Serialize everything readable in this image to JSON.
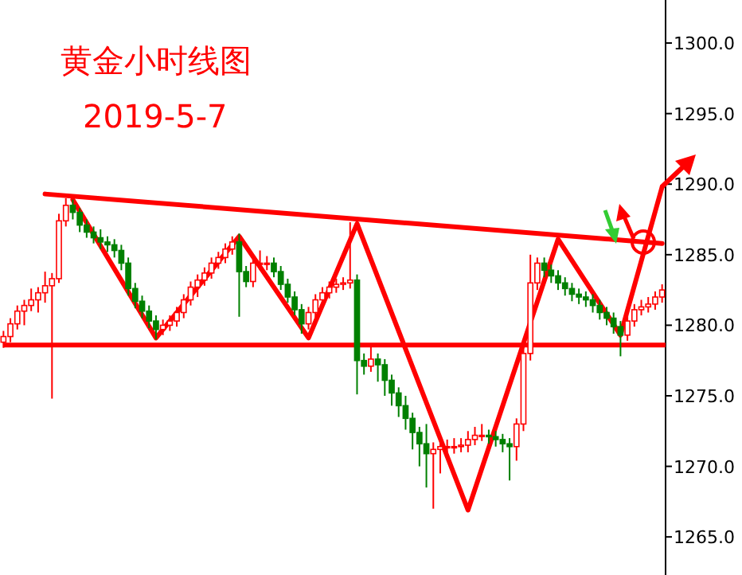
{
  "chart_data": {
    "type": "candlestick",
    "title": "黄金小时线图",
    "subtitle": "2019-5-7",
    "categories": [
      null,
      null,
      null,
      null,
      null,
      null,
      null,
      null,
      null,
      null,
      null,
      null,
      null,
      null,
      null,
      null,
      null,
      null,
      null,
      null,
      null,
      null,
      null,
      null,
      null,
      null,
      null,
      null,
      null,
      null,
      null,
      null,
      null,
      null,
      null,
      null,
      null,
      null,
      null,
      null,
      null,
      null,
      null,
      null,
      null,
      null,
      null,
      null,
      null,
      null,
      null,
      null,
      null,
      null,
      null,
      null,
      null,
      null,
      null,
      null,
      null,
      null,
      null,
      null,
      null,
      null,
      null,
      null,
      null,
      null,
      null,
      null,
      null,
      null,
      null,
      null,
      null,
      null,
      null,
      null,
      null,
      null,
      null,
      null,
      null,
      null,
      null,
      null,
      null,
      null,
      null,
      null,
      null,
      null,
      null,
      null
    ],
    "ylim": [
      1262.3,
      1303.05
    ],
    "yticks": [
      {
        "value": 1265,
        "label": "1265.0"
      },
      {
        "value": 1270,
        "label": "1270.0"
      },
      {
        "value": 1275,
        "label": "1275.0"
      },
      {
        "value": 1280,
        "label": "1280.0"
      },
      {
        "value": 1285,
        "label": "1285.0"
      },
      {
        "value": 1290,
        "label": "1290.0"
      },
      {
        "value": 1295,
        "label": "1295.0"
      },
      {
        "value": 1300,
        "label": "1300.0"
      }
    ],
    "series": [
      {
        "ohlc": [
          [
            1278.8,
            1279.6,
            1278.4,
            1279.2
          ],
          [
            1279.2,
            1280.5,
            1278.8,
            1280.1
          ],
          [
            1280.1,
            1281.4,
            1279.7,
            1281.0
          ],
          [
            1281.0,
            1281.8,
            1280.0,
            1281.4
          ],
          [
            1281.4,
            1282.6,
            1281.0,
            1281.8
          ],
          [
            1281.8,
            1282.7,
            1280.9,
            1282.3
          ],
          [
            1282.3,
            1283.8,
            1281.6,
            1282.8
          ],
          [
            1282.8,
            1283.7,
            1274.8,
            1283.3
          ],
          [
            1283.3,
            1287.9,
            1283.0,
            1287.4
          ],
          [
            1287.4,
            1289.0,
            1287.0,
            1288.5
          ],
          [
            1288.5,
            1288.9,
            1287.5,
            1288.0
          ],
          [
            1288.0,
            1288.3,
            1286.6,
            1287.1
          ],
          [
            1287.1,
            1287.5,
            1286.2,
            1286.6
          ],
          [
            1286.6,
            1287.0,
            1285.8,
            1286.2
          ],
          [
            1286.2,
            1286.8,
            1285.4,
            1285.9
          ],
          [
            1285.9,
            1286.3,
            1285.2,
            1285.7
          ],
          [
            1285.7,
            1286.1,
            1284.8,
            1285.3
          ],
          [
            1285.3,
            1285.7,
            1283.9,
            1284.4
          ],
          [
            1284.4,
            1284.8,
            1282.1,
            1282.6
          ],
          [
            1282.6,
            1283.0,
            1281.2,
            1281.7
          ],
          [
            1281.7,
            1282.1,
            1280.5,
            1281.0
          ],
          [
            1281.0,
            1281.4,
            1279.8,
            1280.3
          ],
          [
            1280.3,
            1280.7,
            1279.0,
            1279.7
          ],
          [
            1279.7,
            1280.4,
            1279.3,
            1280.0
          ],
          [
            1280.0,
            1280.7,
            1279.6,
            1280.3
          ],
          [
            1280.3,
            1281.3,
            1279.9,
            1280.9
          ],
          [
            1280.9,
            1282.2,
            1280.5,
            1281.8
          ],
          [
            1281.8,
            1283.1,
            1281.4,
            1282.7
          ],
          [
            1282.7,
            1283.6,
            1282.0,
            1283.2
          ],
          [
            1283.2,
            1284.1,
            1282.8,
            1283.7
          ],
          [
            1283.7,
            1284.8,
            1283.3,
            1284.4
          ],
          [
            1284.4,
            1285.2,
            1284.0,
            1284.8
          ],
          [
            1284.8,
            1285.8,
            1284.4,
            1285.4
          ],
          [
            1285.4,
            1286.3,
            1285.0,
            1285.9
          ],
          [
            1285.9,
            1286.5,
            1280.6,
            1283.8
          ],
          [
            1283.8,
            1284.2,
            1282.7,
            1283.1
          ],
          [
            1283.1,
            1284.8,
            1282.7,
            1284.4
          ],
          [
            1284.4,
            1285.3,
            1283.9,
            1284.4
          ],
          [
            1284.4,
            1284.9,
            1283.9,
            1284.4
          ],
          [
            1284.4,
            1284.8,
            1283.4,
            1283.8
          ],
          [
            1283.8,
            1284.2,
            1282.5,
            1282.9
          ],
          [
            1282.9,
            1283.3,
            1281.6,
            1282.0
          ],
          [
            1282.0,
            1282.4,
            1280.7,
            1281.1
          ],
          [
            1281.1,
            1281.5,
            1279.4,
            1280.1
          ],
          [
            1280.1,
            1281.3,
            1279.7,
            1280.9
          ],
          [
            1280.9,
            1282.2,
            1280.5,
            1281.8
          ],
          [
            1281.8,
            1282.7,
            1281.4,
            1282.3
          ],
          [
            1282.3,
            1283.1,
            1281.9,
            1282.7
          ],
          [
            1282.7,
            1283.3,
            1282.3,
            1282.9
          ],
          [
            1282.9,
            1283.4,
            1282.5,
            1283.0
          ],
          [
            1283.0,
            1287.3,
            1282.6,
            1283.2
          ],
          [
            1283.2,
            1283.6,
            1275.1,
            1277.5
          ],
          [
            1277.5,
            1278.0,
            1276.5,
            1277.1
          ],
          [
            1277.1,
            1278.5,
            1276.7,
            1277.6
          ],
          [
            1277.6,
            1278.0,
            1276.0,
            1277.2
          ],
          [
            1277.2,
            1277.6,
            1275.0,
            1276.1
          ],
          [
            1276.1,
            1276.5,
            1274.3,
            1275.2
          ],
          [
            1275.2,
            1275.6,
            1273.5,
            1274.3
          ],
          [
            1274.3,
            1275.0,
            1272.6,
            1273.4
          ],
          [
            1273.4,
            1273.8,
            1271.2,
            1272.4
          ],
          [
            1272.4,
            1272.8,
            1270.0,
            1271.6
          ],
          [
            1271.6,
            1273.0,
            1268.5,
            1270.9
          ],
          [
            1270.9,
            1271.7,
            1267.0,
            1271.2
          ],
          [
            1271.2,
            1272.0,
            1269.5,
            1271.4
          ],
          [
            1271.4,
            1271.9,
            1270.5,
            1271.4
          ],
          [
            1271.4,
            1272.0,
            1270.9,
            1271.4
          ],
          [
            1271.4,
            1272.0,
            1271.0,
            1271.5
          ],
          [
            1271.5,
            1272.5,
            1271.0,
            1271.9
          ],
          [
            1271.9,
            1272.8,
            1271.5,
            1272.2
          ],
          [
            1272.2,
            1273.0,
            1271.8,
            1272.2
          ],
          [
            1272.2,
            1272.6,
            1271.6,
            1272.1
          ],
          [
            1272.1,
            1272.5,
            1271.4,
            1271.9
          ],
          [
            1271.9,
            1272.3,
            1271.0,
            1271.6
          ],
          [
            1271.6,
            1272.0,
            1269.0,
            1271.4
          ],
          [
            1271.4,
            1273.4,
            1270.4,
            1273.0
          ],
          [
            1273.0,
            1278.5,
            1272.5,
            1278.0
          ],
          [
            1278.0,
            1285.0,
            1277.5,
            1283.0
          ],
          [
            1283.0,
            1284.8,
            1282.5,
            1284.4
          ],
          [
            1284.4,
            1284.8,
            1283.4,
            1283.9
          ],
          [
            1283.9,
            1284.3,
            1283.0,
            1283.5
          ],
          [
            1283.5,
            1283.9,
            1282.5,
            1283.0
          ],
          [
            1283.0,
            1283.4,
            1282.1,
            1282.6
          ],
          [
            1282.6,
            1283.0,
            1281.7,
            1282.2
          ],
          [
            1282.2,
            1282.6,
            1281.5,
            1282.0
          ],
          [
            1282.0,
            1282.4,
            1281.3,
            1281.8
          ],
          [
            1281.8,
            1282.2,
            1280.9,
            1281.4
          ],
          [
            1281.4,
            1281.8,
            1280.4,
            1280.9
          ],
          [
            1280.9,
            1281.3,
            1280.0,
            1280.5
          ],
          [
            1280.5,
            1280.9,
            1279.4,
            1279.9
          ],
          [
            1279.9,
            1280.3,
            1277.8,
            1279.3
          ],
          [
            1279.3,
            1280.7,
            1278.9,
            1280.3
          ],
          [
            1280.3,
            1281.5,
            1279.9,
            1281.1
          ],
          [
            1281.1,
            1281.8,
            1280.7,
            1281.3
          ],
          [
            1281.3,
            1282.0,
            1280.9,
            1281.5
          ],
          [
            1281.5,
            1282.4,
            1281.1,
            1282.0
          ],
          [
            1282.0,
            1282.9,
            1281.6,
            1282.5
          ]
        ],
        "colors": [
          "#ff0000",
          "#ff0000",
          "#ff0000",
          "#ff0000",
          "#ff0000",
          "#ff0000",
          "#ff0000",
          "#ff0000",
          "#ff0000",
          "#ff0000",
          "#008000",
          "#008000",
          "#008000",
          "#008000",
          "#008000",
          "#008000",
          "#008000",
          "#008000",
          "#008000",
          "#008000",
          "#008000",
          "#008000",
          "#008000",
          "#ff0000",
          "#ff0000",
          "#ff0000",
          "#ff0000",
          "#ff0000",
          "#ff0000",
          "#ff0000",
          "#ff0000",
          "#ff0000",
          "#ff0000",
          "#ff0000",
          "#008000",
          "#008000",
          "#ff0000",
          "#ff0000",
          "#ff0000",
          "#008000",
          "#008000",
          "#008000",
          "#008000",
          "#008000",
          "#ff0000",
          "#ff0000",
          "#ff0000",
          "#ff0000",
          "#ff0000",
          "#ff0000",
          "#ff0000",
          "#008000",
          "#008000",
          "#ff0000",
          "#008000",
          "#008000",
          "#008000",
          "#008000",
          "#008000",
          "#008000",
          "#008000",
          "#008000",
          "#ff0000",
          "#ff0000",
          "#ff0000",
          "#ff0000",
          "#ff0000",
          "#ff0000",
          "#ff0000",
          "#ff0000",
          "#008000",
          "#008000",
          "#008000",
          "#008000",
          "#ff0000",
          "#ff0000",
          "#ff0000",
          "#ff0000",
          "#008000",
          "#008000",
          "#008000",
          "#008000",
          "#008000",
          "#008000",
          "#008000",
          "#008000",
          "#008000",
          "#008000",
          "#008000",
          "#008000",
          "#ff0000",
          "#ff0000",
          "#ff0000",
          "#ff0000",
          "#ff0000",
          "#ff0000"
        ]
      },
      {
        "type": "line",
        "color": "#ff0000",
        "values": [
          null,
          null,
          null,
          null,
          null,
          null,
          1289.3,
          null,
          null,
          null,
          null,
          null,
          null,
          null,
          null,
          null,
          null,
          null,
          null,
          null,
          null,
          null,
          null,
          null,
          null,
          null,
          null,
          null,
          null,
          null,
          null,
          null,
          null,
          null,
          null,
          null,
          null,
          null,
          null,
          null,
          null,
          null,
          null,
          null,
          null,
          null,
          null,
          null,
          null,
          null,
          null,
          null,
          null,
          null,
          null,
          null,
          null,
          null,
          null,
          null,
          null,
          null,
          null,
          null,
          null,
          null,
          null,
          null,
          null,
          null,
          null,
          null,
          null,
          null,
          null,
          null,
          null,
          null,
          null,
          null,
          null,
          null,
          null,
          null,
          null,
          null,
          null,
          null,
          null,
          null,
          null,
          null,
          null,
          null,
          null,
          1285.8
        ]
      },
      {
        "type": "line",
        "color": "#ff0000",
        "values": [
          null,
          null,
          null,
          null,
          null,
          null,
          null,
          null,
          null,
          null,
          1288.9,
          null,
          null,
          null,
          null,
          null,
          null,
          null,
          null,
          null,
          null,
          null,
          1279.1,
          null,
          null,
          null,
          null,
          null,
          null,
          null,
          null,
          null,
          null,
          null,
          1286.3,
          null,
          null,
          null,
          null,
          null,
          null,
          null,
          null,
          null,
          1279.1,
          null,
          null,
          null,
          null,
          null,
          null,
          1287.2,
          null,
          null,
          null,
          null,
          null,
          null,
          null,
          null,
          null,
          null,
          null,
          null,
          null,
          null,
          null,
          1266.9,
          null,
          null,
          null,
          null,
          null,
          null,
          null,
          null,
          null,
          null,
          null,
          null,
          1286.1,
          null,
          null,
          null,
          null,
          null,
          null,
          null,
          null,
          1279.3,
          null,
          null,
          null,
          null,
          null,
          1289.8
        ]
      }
    ],
    "ref_lines": [
      {
        "axis": "y",
        "value": 1278.6,
        "color": "#ff0000"
      }
    ]
  }
}
